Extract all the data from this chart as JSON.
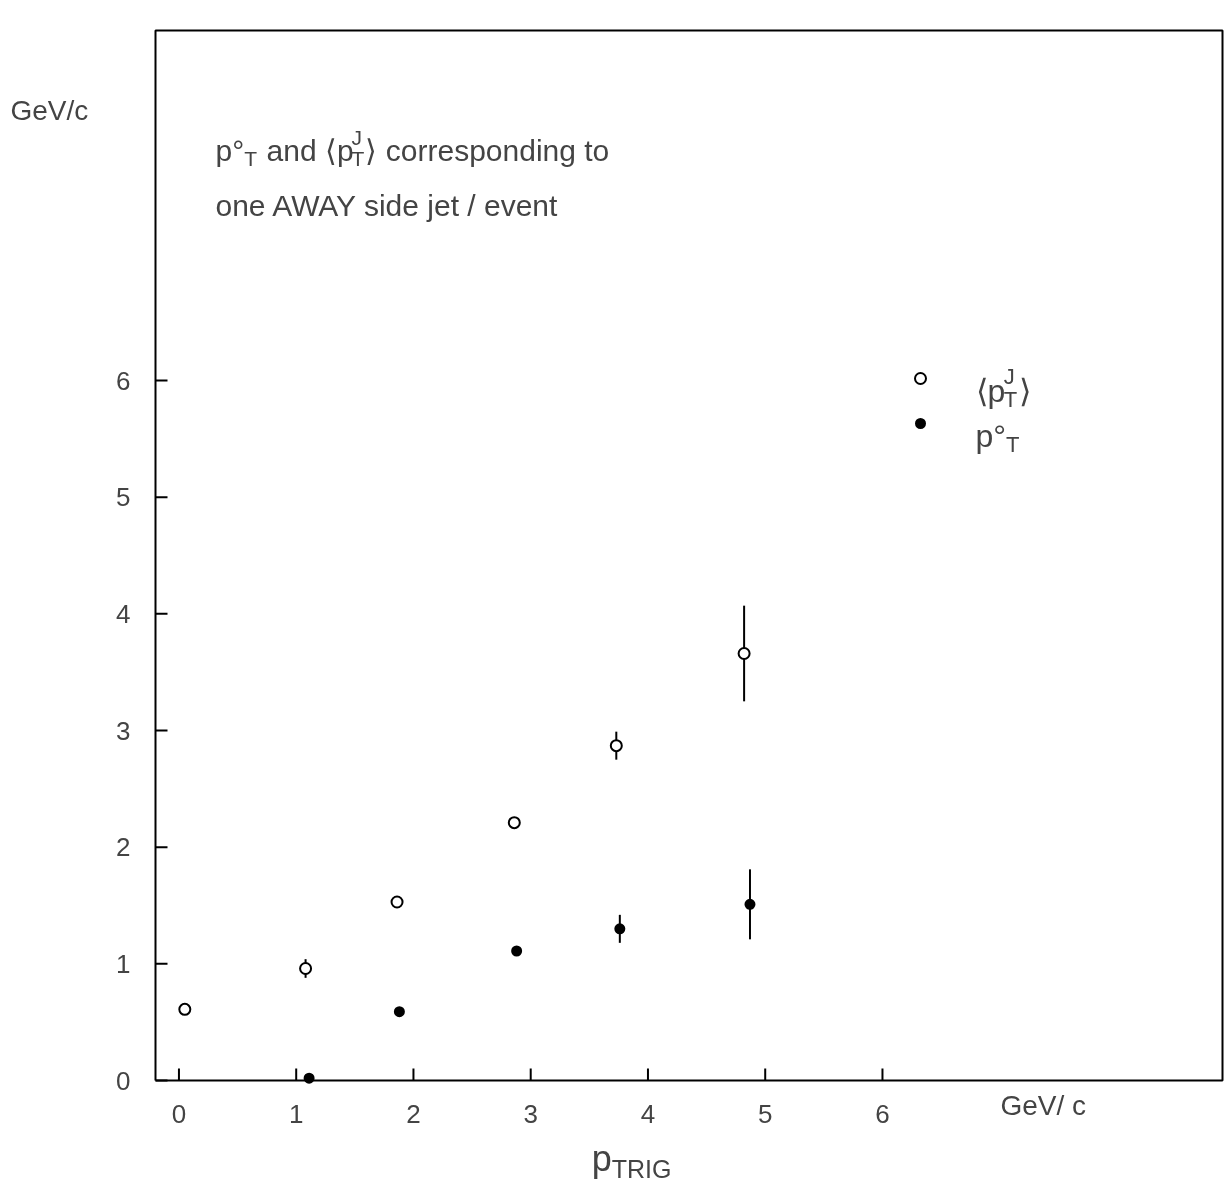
{
  "chart_data": {
    "type": "scatter",
    "title": "p°$_{T}$ and ⟨p$^{J}$$_{T}$⟩ corresponding to one AWAY side jet / event",
    "xlabel": "p$_{TRIG}$",
    "ylabel": "GeV/c",
    "annotations": [
      "GeV/ c"
    ],
    "xlim": [
      -0.2,
      8.9
    ],
    "ylim": [
      0,
      9.0
    ],
    "xticks": [
      0,
      1,
      2,
      3,
      4,
      5,
      6
    ],
    "yticks": [
      0,
      1,
      2,
      3,
      4,
      5,
      6
    ],
    "grid": false,
    "legend": "top right",
    "series": [
      {
        "name": "⟨p$^{J}$$_{T}$⟩",
        "color": "#000000",
        "marker": "circle",
        "x": [
          0.05,
          1.08,
          1.86,
          2.86,
          3.73,
          4.82
        ],
        "values": [
          0.61,
          0.96,
          1.53,
          2.21,
          2.87,
          3.66
        ],
        "errors": [
          null,
          0.08,
          null,
          null,
          0.12,
          0.41
        ]
      },
      {
        "name": "p°$_{T}$",
        "color": "#000000",
        "marker": "dot",
        "x": [
          1.11,
          1.88,
          2.88,
          3.76,
          4.87
        ],
        "values": [
          0.02,
          0.59,
          1.11,
          1.3,
          1.51
        ],
        "errors": [
          null,
          null,
          null,
          0.12,
          0.3
        ]
      }
    ]
  }
}
